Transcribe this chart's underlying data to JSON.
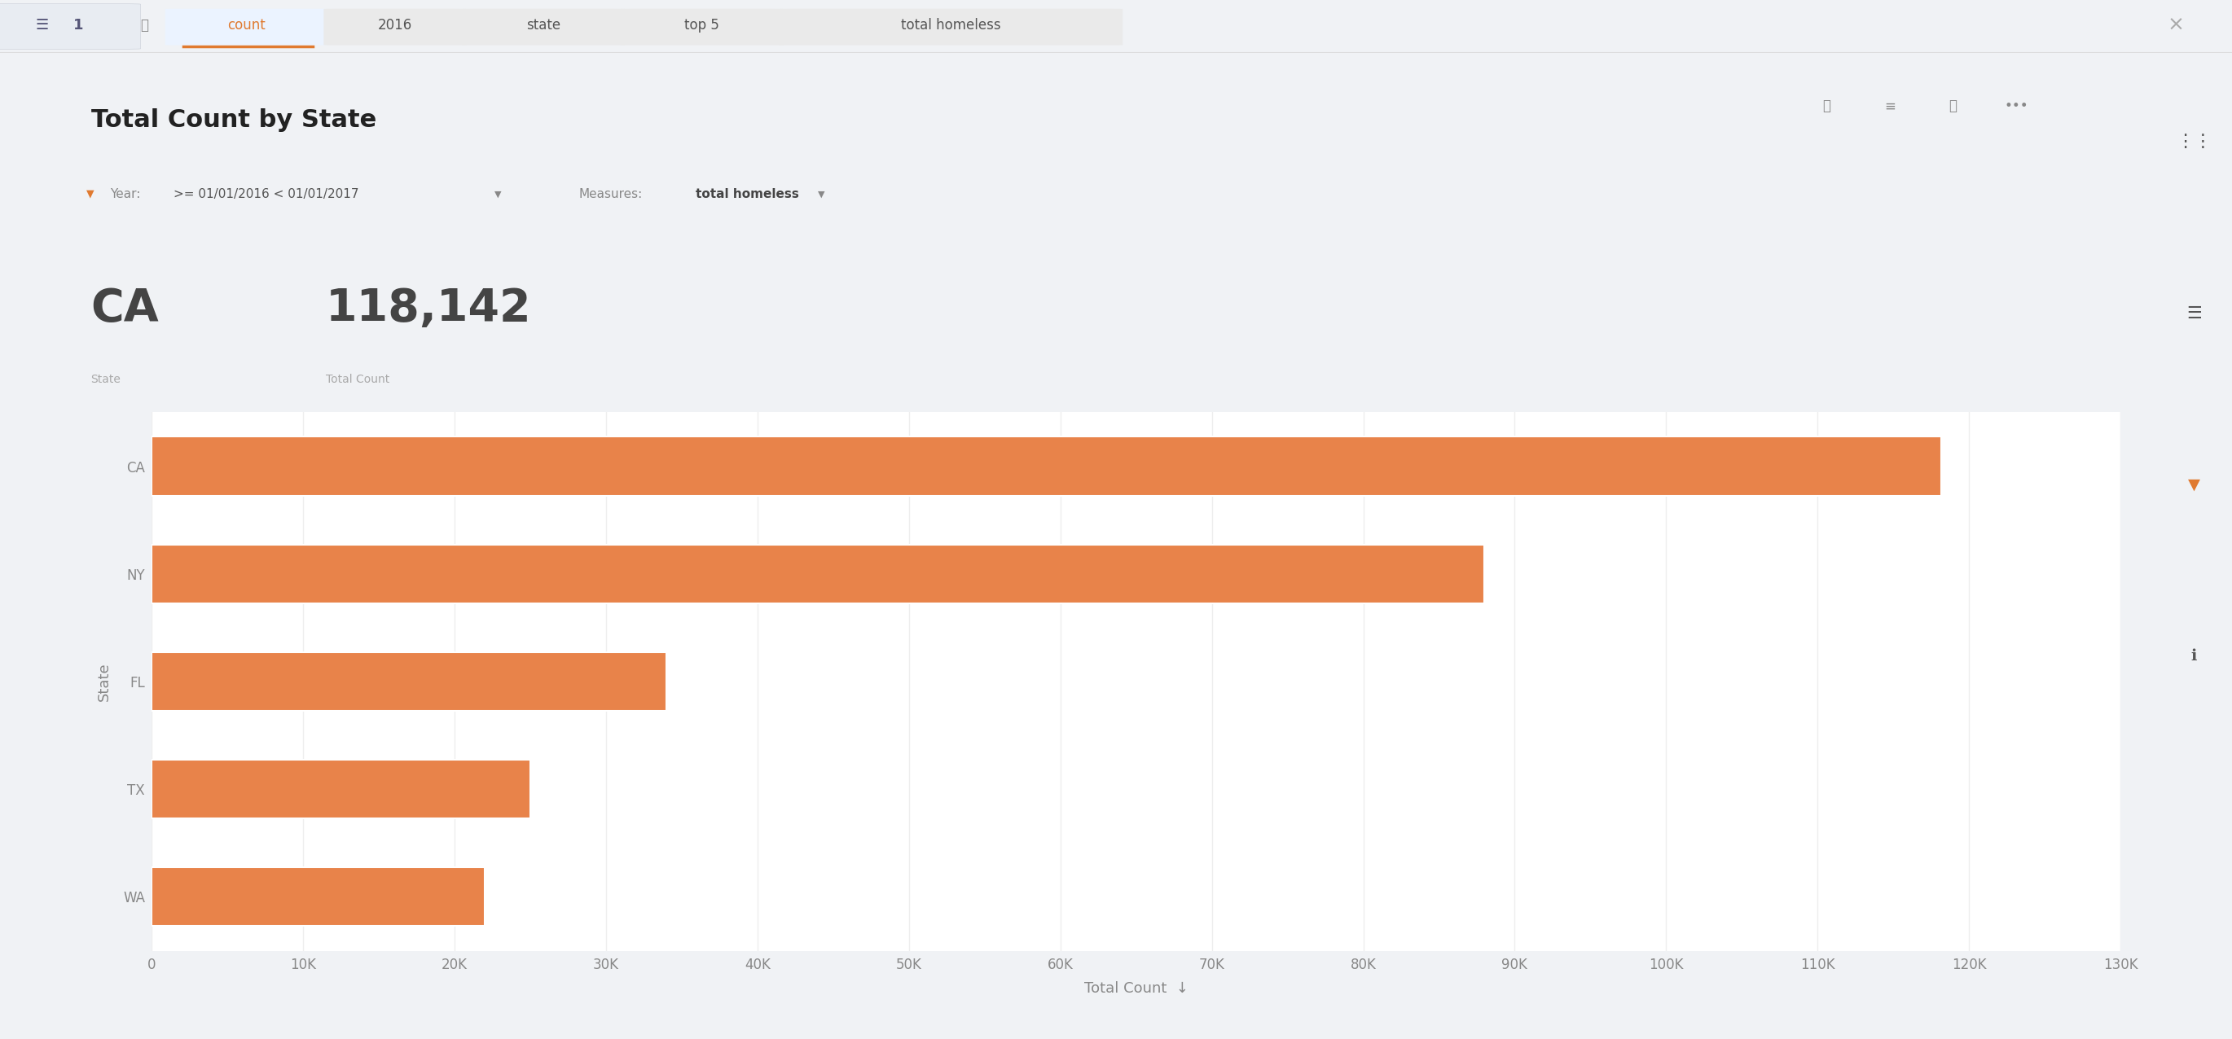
{
  "title": "Total Count by State",
  "filter_text": ">= 01/01/2016 < 01/01/2017",
  "measures_text": "total homeless",
  "highlight_state": "CA",
  "highlight_value": "118,142",
  "highlight_state_label": "State",
  "highlight_value_label": "Total Count",
  "states": [
    "WA",
    "TX",
    "FL",
    "NY",
    "CA"
  ],
  "values": [
    22000,
    25000,
    34000,
    88000,
    118142
  ],
  "bar_color": "#E8834A",
  "bar_edge_color": "#FFFFFF",
  "xlabel": "Total Count",
  "ylabel": "State",
  "xlim": [
    0,
    130000
  ],
  "xticks": [
    0,
    10000,
    20000,
    30000,
    40000,
    50000,
    60000,
    70000,
    80000,
    90000,
    100000,
    110000,
    120000,
    130000
  ],
  "xtick_labels": [
    "0",
    "10K",
    "20K",
    "30K",
    "40K",
    "50K",
    "60K",
    "70K",
    "80K",
    "90K",
    "100K",
    "110K",
    "120K",
    "130K"
  ],
  "bg_color": "#F0F2F5",
  "panel_bg": "#FFFFFF",
  "grid_color": "#EEEEEE",
  "axis_label_color": "#888888",
  "tick_label_color": "#888888",
  "title_color": "#222222",
  "title_fontsize": 22,
  "axis_fontsize": 13,
  "tick_fontsize": 12,
  "bar_height": 0.55,
  "sort_arrow": "↓",
  "search_tags": [
    "count",
    "2016",
    "state",
    "top 5",
    "total homeless"
  ],
  "tag_highlighted": 0,
  "tag_color_active": "#E07A30",
  "tag_color_normal": "#555555",
  "tag_bg_active": "#EBF3FF",
  "tag_bg_normal": "#EAEAEA"
}
